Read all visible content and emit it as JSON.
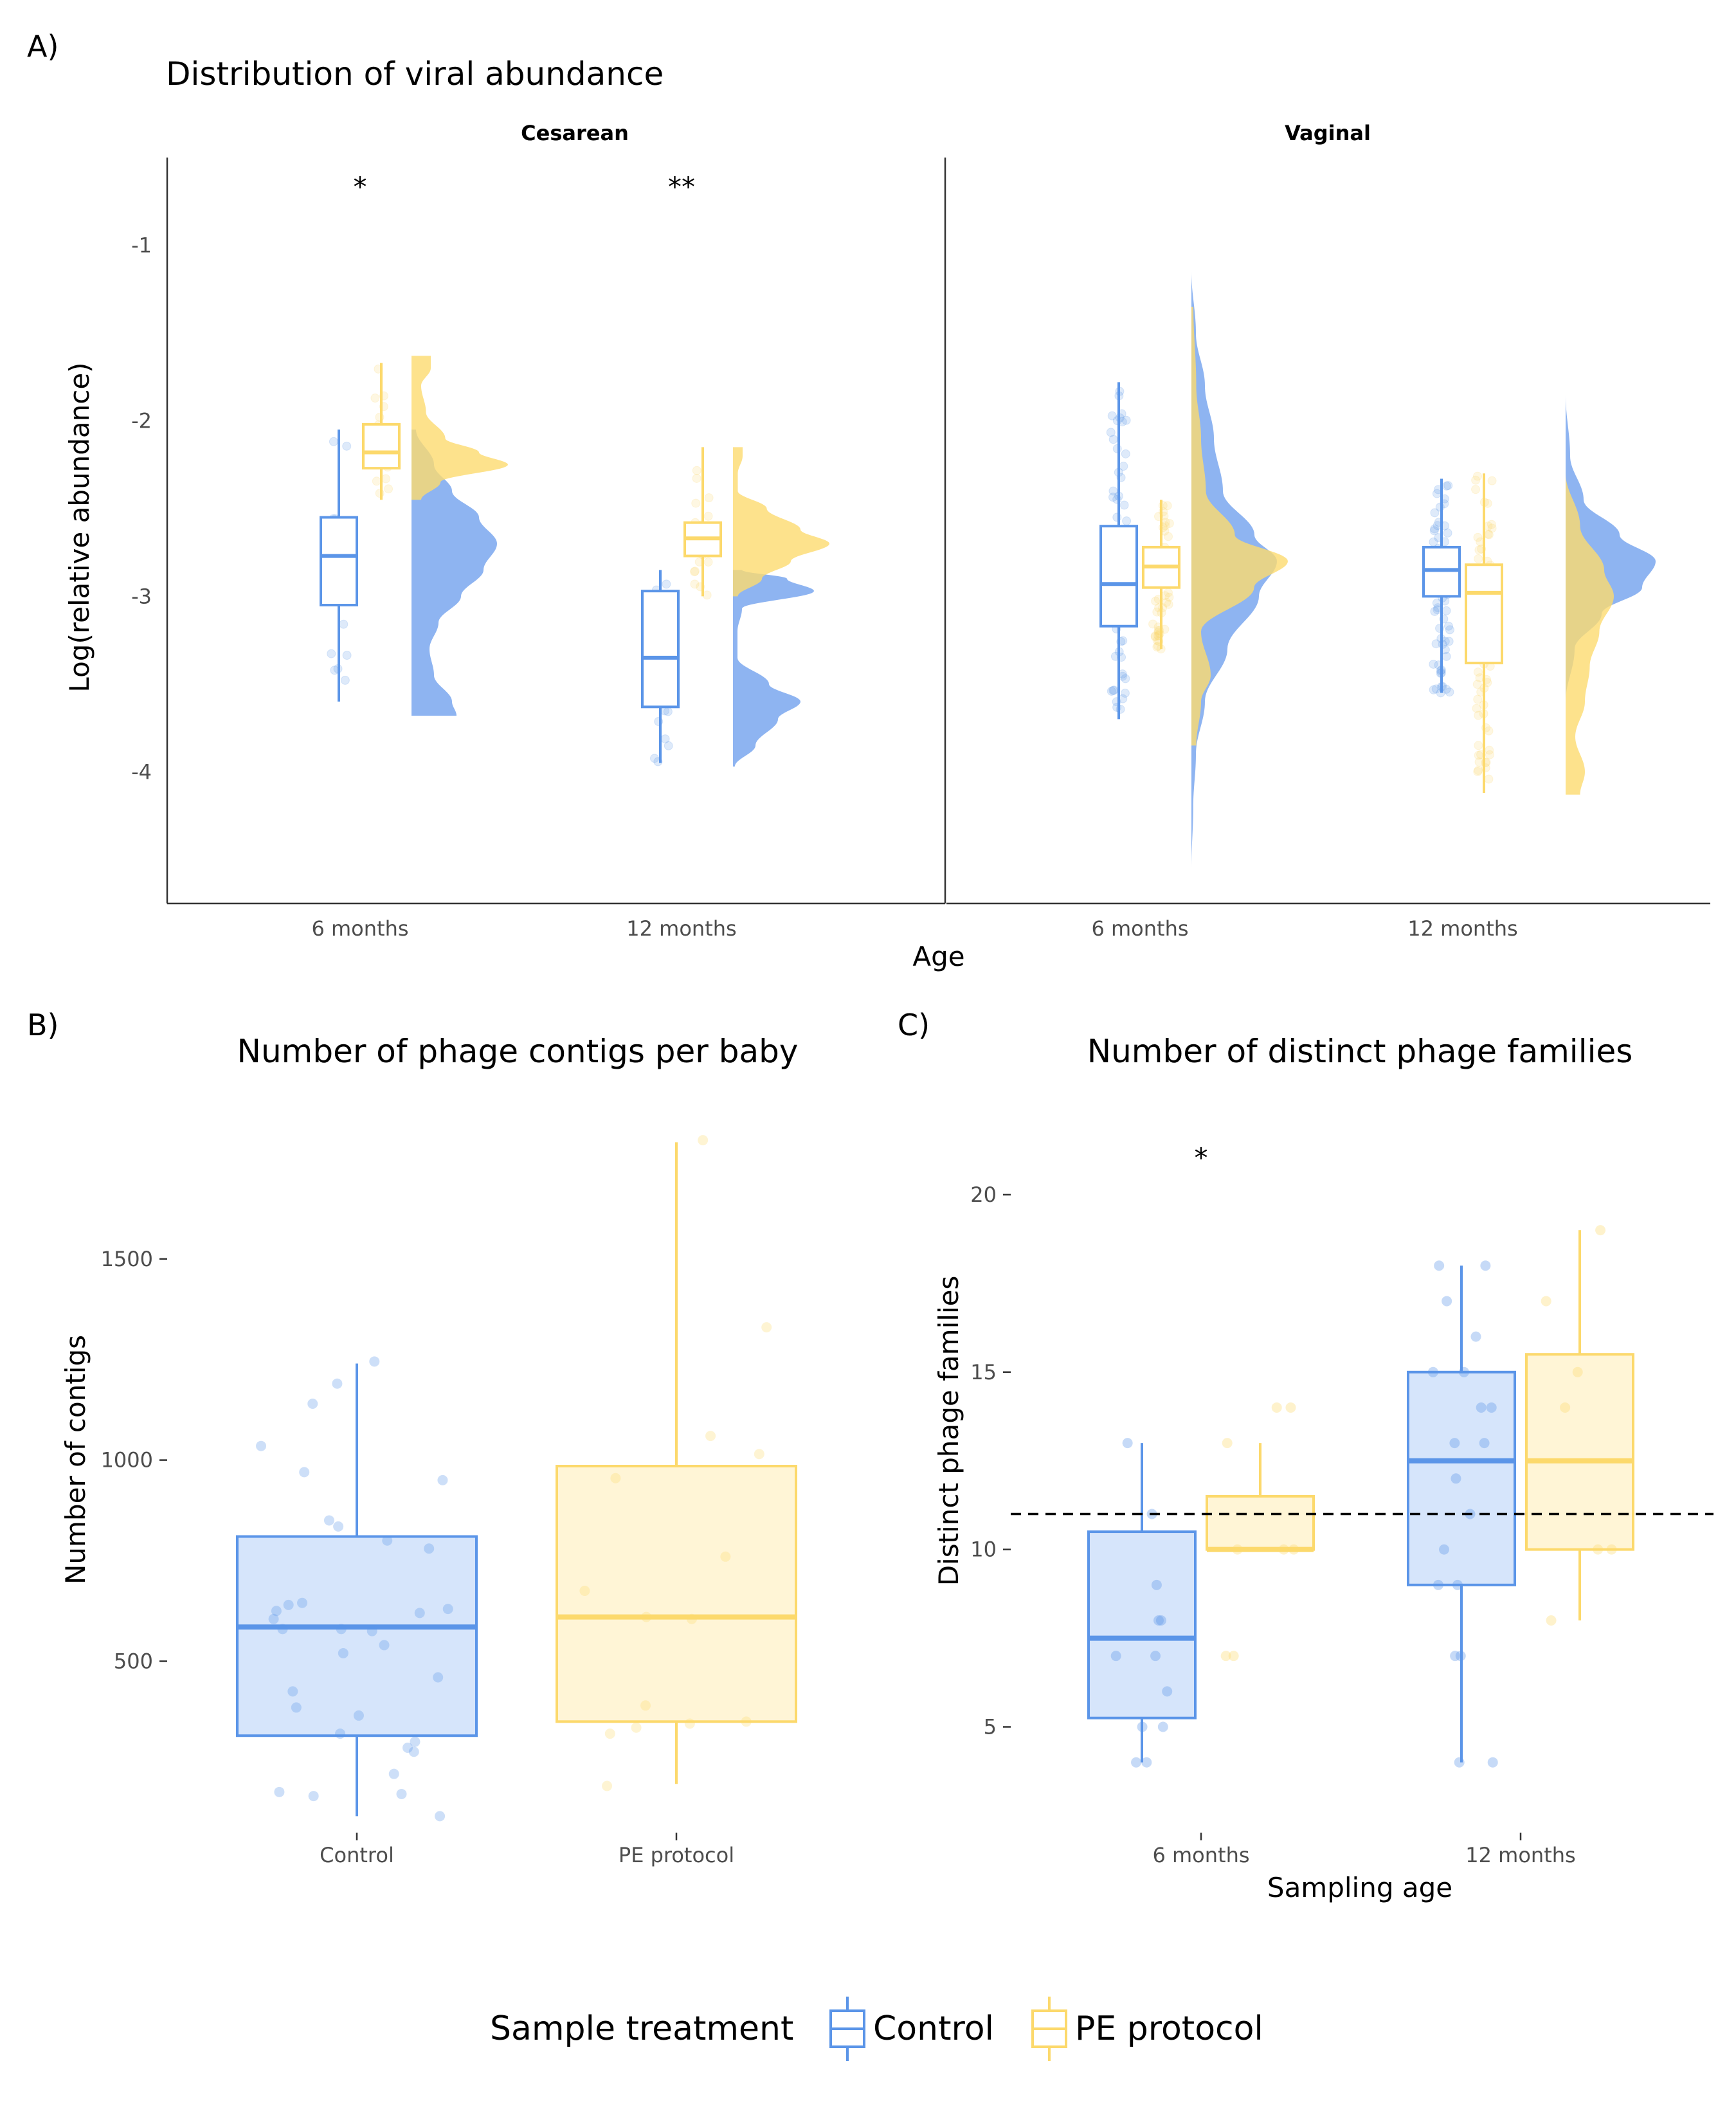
{
  "colors": {
    "control": "#5b95e8",
    "control_fill": "#d6e5fb",
    "pe": "#fcd96c",
    "pe_fill": "#fff5d6",
    "control_density": "#7aa7ee",
    "pe_density": "#fddb6f"
  },
  "panels": {
    "A": {
      "letter": "A)",
      "title": "Distribution of viral abundance"
    },
    "B": {
      "letter": "B)",
      "title": "Number of phage contigs per baby"
    },
    "C": {
      "letter": "C)",
      "title": "Number of distinct phage families"
    }
  },
  "legend": {
    "title": "Sample treatment",
    "items": [
      {
        "label": "Control",
        "color_key": "control"
      },
      {
        "label": "PE protocol",
        "color_key": "pe"
      }
    ]
  },
  "chart_data": [
    {
      "id": "A",
      "type": "box+density",
      "title": "Distribution of viral abundance",
      "xlabel": "Age",
      "ylabel": "Log(relative abundance)",
      "ylim": [
        -4.75,
        -0.5
      ],
      "yticks": [
        -1,
        -2,
        -3,
        -4
      ],
      "ytick_labels": [
        "-1",
        "-2",
        "-3",
        "-4"
      ],
      "categories": [
        "6 months",
        "12 months"
      ],
      "facets": [
        {
          "label": "Cesarean",
          "annotations": [
            {
              "category": "6 months",
              "text": "*"
            },
            {
              "category": "12 months",
              "text": "**"
            }
          ],
          "groups": [
            {
              "category": "6 months",
              "series": "Control",
              "q1": -3.05,
              "median": -2.77,
              "q3": -2.55,
              "whisker_low": -3.6,
              "whisker_high": -2.05,
              "density_range": [
                -3.68,
                -2.05
              ],
              "density": [
                [
                  -3.68,
                  0.5
                ],
                [
                  -3.6,
                  0.45
                ],
                [
                  -3.45,
                  0.25
                ],
                [
                  -3.3,
                  0.2
                ],
                [
                  -3.15,
                  0.3
                ],
                [
                  -3.0,
                  0.55
                ],
                [
                  -2.85,
                  0.8
                ],
                [
                  -2.7,
                  0.95
                ],
                [
                  -2.55,
                  0.75
                ],
                [
                  -2.4,
                  0.45
                ],
                [
                  -2.25,
                  0.25
                ],
                [
                  -2.05,
                  0.05
                ]
              ]
            },
            {
              "category": "6 months",
              "series": "PE protocol",
              "q1": -2.27,
              "median": -2.18,
              "q3": -2.02,
              "whisker_low": -2.45,
              "whisker_high": -1.67,
              "density_range": [
                -2.45,
                -1.63
              ],
              "density": [
                [
                  -2.45,
                  0.1
                ],
                [
                  -2.35,
                  0.3
                ],
                [
                  -2.25,
                  1.0
                ],
                [
                  -2.18,
                  0.7
                ],
                [
                  -2.1,
                  0.35
                ],
                [
                  -1.95,
                  0.15
                ],
                [
                  -1.8,
                  0.1
                ],
                [
                  -1.7,
                  0.2
                ],
                [
                  -1.63,
                  0.2
                ]
              ]
            },
            {
              "category": "12 months",
              "series": "Control",
              "q1": -3.63,
              "median": -3.35,
              "q3": -2.97,
              "whisker_low": -3.95,
              "whisker_high": -2.85,
              "density_range": [
                -3.97,
                -2.85
              ],
              "density": [
                [
                  -3.97,
                  0.02
                ],
                [
                  -3.85,
                  0.25
                ],
                [
                  -3.7,
                  0.5
                ],
                [
                  -3.6,
                  0.75
                ],
                [
                  -3.5,
                  0.4
                ],
                [
                  -3.35,
                  0.05
                ],
                [
                  -3.2,
                  0.05
                ],
                [
                  -3.07,
                  0.1
                ],
                [
                  -2.97,
                  0.9
                ],
                [
                  -2.9,
                  0.6
                ],
                [
                  -2.85,
                  0.1
                ]
              ]
            },
            {
              "category": "12 months",
              "series": "PE protocol",
              "q1": -2.77,
              "median": -2.67,
              "q3": -2.58,
              "whisker_low": -3.0,
              "whisker_high": -2.15,
              "density_range": [
                -3.0,
                -2.15
              ],
              "density": [
                [
                  -3.0,
                  0.05
                ],
                [
                  -2.9,
                  0.3
                ],
                [
                  -2.8,
                  0.6
                ],
                [
                  -2.7,
                  1.0
                ],
                [
                  -2.62,
                  0.7
                ],
                [
                  -2.5,
                  0.35
                ],
                [
                  -2.4,
                  0.05
                ],
                [
                  -2.3,
                  0.05
                ],
                [
                  -2.2,
                  0.1
                ],
                [
                  -2.15,
                  0.1
                ]
              ]
            }
          ]
        },
        {
          "label": "Vaginal",
          "annotations": [],
          "groups": [
            {
              "category": "6 months",
              "series": "Control",
              "q1": -3.17,
              "median": -2.93,
              "q3": -2.6,
              "whisker_low": -3.7,
              "whisker_high": -1.78,
              "density_range": [
                -4.55,
                -1.15
              ],
              "density": [
                [
                  -4.55,
                  0.0
                ],
                [
                  -4.2,
                  0.02
                ],
                [
                  -3.9,
                  0.05
                ],
                [
                  -3.6,
                  0.15
                ],
                [
                  -3.3,
                  0.4
                ],
                [
                  -3.0,
                  0.75
                ],
                [
                  -2.8,
                  0.95
                ],
                [
                  -2.65,
                  0.7
                ],
                [
                  -2.4,
                  0.35
                ],
                [
                  -2.1,
                  0.25
                ],
                [
                  -1.8,
                  0.15
                ],
                [
                  -1.5,
                  0.05
                ],
                [
                  -1.15,
                  0.0
                ]
              ]
            },
            {
              "category": "6 months",
              "series": "PE protocol",
              "q1": -2.95,
              "median": -2.83,
              "q3": -2.72,
              "whisker_low": -3.3,
              "whisker_high": -2.45,
              "density_range": [
                -3.85,
                -1.35
              ],
              "density": [
                [
                  -3.85,
                  0.05
                ],
                [
                  -3.6,
                  0.1
                ],
                [
                  -3.45,
                  0.2
                ],
                [
                  -3.2,
                  0.1
                ],
                [
                  -2.95,
                  0.65
                ],
                [
                  -2.8,
                  1.0
                ],
                [
                  -2.65,
                  0.45
                ],
                [
                  -2.4,
                  0.15
                ],
                [
                  -2.1,
                  0.1
                ],
                [
                  -1.8,
                  0.05
                ],
                [
                  -1.35,
                  0.02
                ]
              ]
            },
            {
              "category": "12 months",
              "series": "Control",
              "q1": -3.0,
              "median": -2.85,
              "q3": -2.72,
              "whisker_low": -3.55,
              "whisker_high": -2.33,
              "density_range": [
                -3.6,
                -1.85
              ],
              "density": [
                [
                  -3.6,
                  0.0
                ],
                [
                  -3.3,
                  0.1
                ],
                [
                  -3.1,
                  0.4
                ],
                [
                  -2.95,
                  0.85
                ],
                [
                  -2.8,
                  1.0
                ],
                [
                  -2.65,
                  0.6
                ],
                [
                  -2.45,
                  0.2
                ],
                [
                  -2.2,
                  0.05
                ],
                [
                  -1.85,
                  0.0
                ]
              ]
            },
            {
              "category": "12 months",
              "series": "PE protocol",
              "q1": -3.38,
              "median": -2.98,
              "q3": -2.82,
              "whisker_low": -4.12,
              "whisker_high": -2.3,
              "density_range": [
                -4.13,
                -2.3
              ],
              "density": [
                [
                  -4.13,
                  0.15
                ],
                [
                  -4.0,
                  0.2
                ],
                [
                  -3.8,
                  0.1
                ],
                [
                  -3.6,
                  0.2
                ],
                [
                  -3.4,
                  0.25
                ],
                [
                  -3.2,
                  0.35
                ],
                [
                  -3.0,
                  0.5
                ],
                [
                  -2.85,
                  0.4
                ],
                [
                  -2.6,
                  0.15
                ],
                [
                  -2.3,
                  0.0
                ]
              ]
            }
          ]
        }
      ]
    },
    {
      "id": "B",
      "type": "box",
      "title": "Number of phage contigs per baby",
      "xlabel": "",
      "ylabel": "Number of contigs",
      "ylim": [
        90,
        1880
      ],
      "yticks": [
        500,
        1000,
        1500
      ],
      "categories": [
        "Control",
        "PE protocol"
      ],
      "series": [
        {
          "name": "Control",
          "q1": 315,
          "median": 585,
          "q3": 810,
          "whisker_low": 115,
          "whisker_high": 1240,
          "points": [
            1190,
            1140,
            1245,
            1035,
            970,
            950,
            850,
            835,
            800,
            780,
            645,
            640,
            630,
            625,
            620,
            605,
            580,
            580,
            575,
            540,
            520,
            460,
            425,
            385,
            365,
            320,
            300,
            285,
            275,
            220,
            175,
            170,
            165,
            115
          ]
        },
        {
          "name": "PE protocol",
          "q1": 350,
          "median": 610,
          "q3": 985,
          "whisker_low": 195,
          "whisker_high": 1790,
          "points": [
            1795,
            1330,
            1060,
            1015,
            955,
            760,
            675,
            610,
            605,
            390,
            350,
            345,
            335,
            320,
            190
          ]
        }
      ]
    },
    {
      "id": "C",
      "type": "box",
      "title": "Number of distinct phage families",
      "xlabel": "Sampling age",
      "ylabel": "Distinct phage families",
      "ylim": [
        2.2,
        22.5
      ],
      "yticks": [
        5,
        10,
        15,
        20
      ],
      "categories": [
        "6 months",
        "12 months"
      ],
      "hline": 11,
      "annotations": [
        {
          "category": "6 months",
          "text": "*"
        }
      ],
      "series": [
        {
          "name": "Control",
          "groups": [
            {
              "category": "6 months",
              "q1": 5.25,
              "median": 7.5,
              "q3": 10.5,
              "whisker_low": 4,
              "whisker_high": 13,
              "points": [
                13,
                11,
                9,
                8,
                8,
                7,
                7,
                6,
                5,
                5,
                4,
                4
              ]
            },
            {
              "category": "12 months",
              "q1": 9,
              "median": 12.5,
              "q3": 15,
              "whisker_low": 4,
              "whisker_high": 18,
              "points": [
                18,
                18,
                17,
                16,
                15,
                15,
                14,
                14,
                13,
                13,
                12,
                11,
                10,
                9,
                9,
                7,
                7,
                4,
                4
              ]
            }
          ]
        },
        {
          "name": "PE protocol",
          "groups": [
            {
              "category": "6 months",
              "q1": 10,
              "median": 10,
              "q3": 11.5,
              "whisker_low": 10,
              "whisker_high": 13,
              "points": [
                14,
                14,
                13,
                10,
                10,
                10,
                7,
                7
              ]
            },
            {
              "category": "12 months",
              "q1": 10,
              "median": 12.5,
              "q3": 15.5,
              "whisker_low": 8,
              "whisker_high": 19,
              "points": [
                19,
                17,
                15,
                14,
                10,
                10,
                8
              ]
            }
          ]
        }
      ]
    }
  ]
}
